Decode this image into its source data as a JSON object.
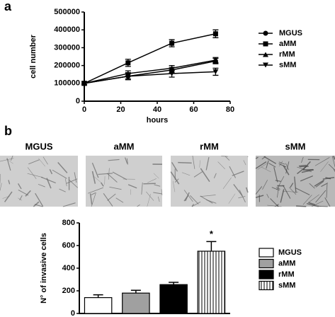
{
  "panel_labels": [
    "a",
    "b"
  ],
  "images": {
    "labels": [
      "MGUS",
      "aMM",
      "rMM",
      "sMM"
    ]
  },
  "chart_data": [
    {
      "type": "line",
      "xlabel": "hours",
      "ylabel": "cell number",
      "x": [
        0,
        24,
        48,
        72
      ],
      "xlim": [
        0,
        80
      ],
      "xticks": [
        0,
        20,
        40,
        60,
        80
      ],
      "ylim": [
        0,
        500000
      ],
      "yticks": [
        0,
        100000,
        200000,
        300000,
        400000,
        500000
      ],
      "legend": "right",
      "series": [
        {
          "name": "MGUS",
          "color": "#000000",
          "marker": "circle",
          "values": [
            100000,
            140000,
            175000,
            225000
          ],
          "errors": [
            8000,
            15000,
            15000,
            15000
          ]
        },
        {
          "name": "aMM",
          "color": "#000000",
          "marker": "square",
          "values": [
            100000,
            215000,
            325000,
            378000
          ],
          "errors": [
            8000,
            20000,
            20000,
            22000
          ]
        },
        {
          "name": "rMM",
          "color": "#000000",
          "marker": "triangle-up",
          "values": [
            100000,
            155000,
            185000,
            230000
          ],
          "errors": [
            8000,
            15000,
            15000,
            15000
          ]
        },
        {
          "name": "sMM",
          "color": "#000000",
          "marker": "triangle-down",
          "values": [
            100000,
            140000,
            155000,
            165000
          ],
          "errors": [
            8000,
            20000,
            20000,
            20000
          ]
        }
      ]
    },
    {
      "type": "bar",
      "ylabel": "N° of invasive cells",
      "categories": [
        "MGUS",
        "aMM",
        "rMM",
        "sMM"
      ],
      "values": [
        140,
        180,
        255,
        550
      ],
      "errors": [
        25,
        25,
        20,
        85
      ],
      "colors": [
        "#ffffff",
        "#a0a0a0",
        "#000000",
        "#ffffff"
      ],
      "patterns": [
        "solid",
        "solid",
        "solid",
        "vertical-stripes"
      ],
      "ylim": [
        0,
        800
      ],
      "yticks": [
        0,
        200,
        400,
        600,
        800
      ],
      "legend": "right",
      "annotations": [
        {
          "text": "*",
          "category": "sMM"
        }
      ]
    }
  ]
}
